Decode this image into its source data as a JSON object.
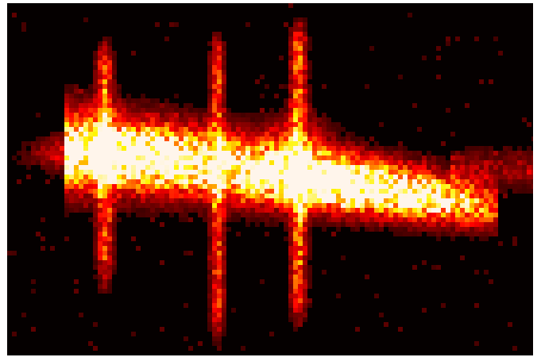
{
  "image": {
    "colormap": "hot",
    "colors": {
      "background": "#050000",
      "frame": "#ffffff",
      "low": "#3a0000",
      "mid": "#c0301a",
      "high": "#ffb040",
      "peak": "#fff5ea"
    }
  }
}
